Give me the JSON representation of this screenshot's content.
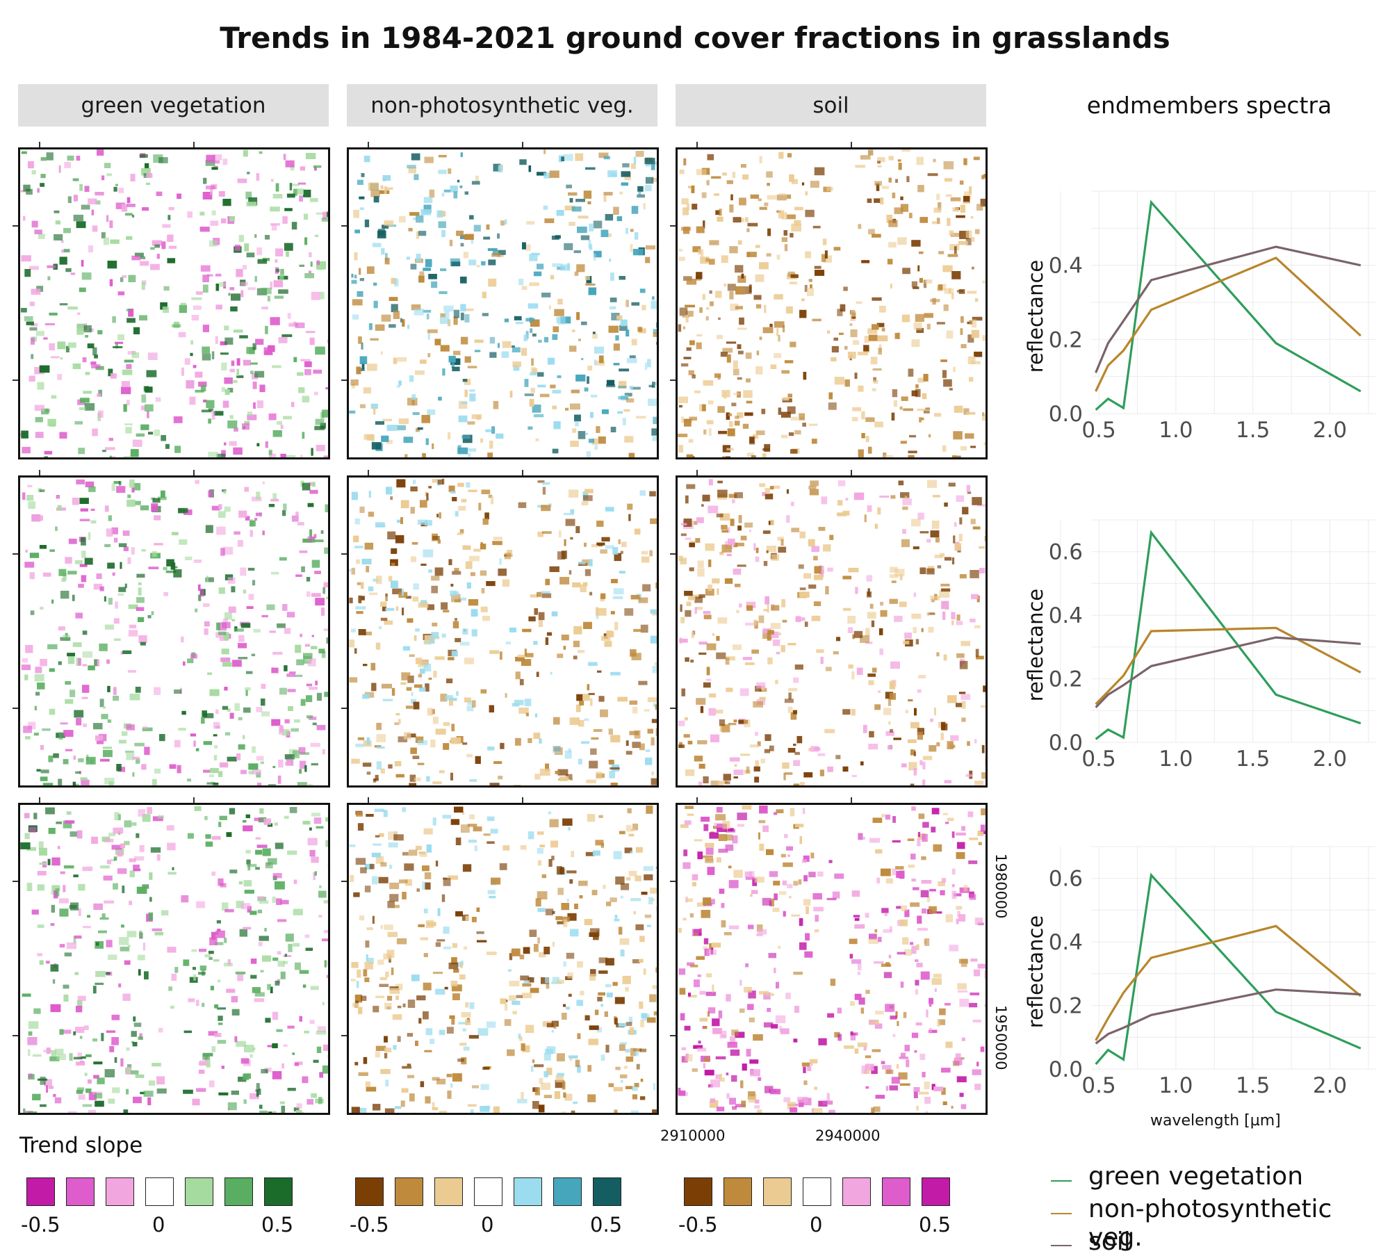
{
  "title": "Trends in 1984-2021 ground cover fractions in grasslands",
  "columns": [
    "green vegetation",
    "non-photosynthetic veg.",
    "soil"
  ],
  "spectra_header": "endmembers spectra",
  "map_axes": {
    "x_ticks": [
      "2910000",
      "2940000"
    ],
    "y_ticks": [
      "1980000",
      "1950000"
    ]
  },
  "legend": {
    "title": "Trend slope",
    "min_label": "-0.5",
    "mid_label": "0",
    "max_label": "0.5",
    "scales": [
      [
        "#c21ba8",
        "#de5ccc",
        "#f2a6e0",
        "#ffffff",
        "#a6dba0",
        "#5aae61",
        "#1b6b2b"
      ],
      [
        "#7b3f06",
        "#bf8a3c",
        "#eccb92",
        "#ffffff",
        "#9bdcef",
        "#46a6bc",
        "#145d61"
      ],
      [
        "#7b3f06",
        "#bf8a3c",
        "#eccb92",
        "#ffffff",
        "#f2a6e0",
        "#de5ccc",
        "#c21ba8"
      ]
    ]
  },
  "map_palettes": [
    [
      "#1b6b2b",
      "#5aae61",
      "#a6dba0",
      "#f2a6e0",
      "#de5ccc"
    ],
    [
      "#145d61",
      "#46a6bc",
      "#9bdcef",
      "#eccb92",
      "#bf8a3c"
    ],
    [
      "#7b3f06",
      "#bf8a3c",
      "#eccb92"
    ],
    [
      "#1b6b2b",
      "#5aae61",
      "#a6dba0",
      "#f2a6e0",
      "#de5ccc"
    ],
    [
      "#bf8a3c",
      "#eccb92",
      "#9bdcef",
      "#7b3f06"
    ],
    [
      "#7b3f06",
      "#bf8a3c",
      "#eccb92",
      "#f2a6e0"
    ],
    [
      "#1b6b2b",
      "#5aae61",
      "#a6dba0",
      "#f2a6e0",
      "#de5ccc"
    ],
    [
      "#7b3f06",
      "#bf8a3c",
      "#eccb92",
      "#9bdcef"
    ],
    [
      "#de5ccc",
      "#c21ba8",
      "#f2a6e0",
      "#eccb92",
      "#bf8a3c"
    ]
  ],
  "series_colors": {
    "green vegetation": "#2e9e5b",
    "non-photosynthetic veg.": "#b8862b",
    "soil": "#7a6468"
  },
  "chart_data": [
    {
      "type": "line",
      "xlabel": "wavelength [µm]",
      "ylabel": "reflectance",
      "xlim": [
        0.45,
        2.3
      ],
      "ylim": [
        0,
        0.6
      ],
      "x_ticks": [
        "0.5",
        "1.0",
        "1.5",
        "2.0"
      ],
      "y_ticks": [
        "0.0",
        "0.2",
        "0.4"
      ],
      "x": [
        0.48,
        0.56,
        0.66,
        0.84,
        1.65,
        2.2
      ],
      "series": [
        {
          "name": "green vegetation",
          "values": [
            0.01,
            0.04,
            0.015,
            0.57,
            0.19,
            0.06
          ]
        },
        {
          "name": "non-photosynthetic veg.",
          "values": [
            0.06,
            0.13,
            0.17,
            0.28,
            0.42,
            0.21
          ]
        },
        {
          "name": "soil",
          "values": [
            0.11,
            0.19,
            0.25,
            0.36,
            0.45,
            0.4
          ]
        }
      ]
    },
    {
      "type": "line",
      "xlabel": "wavelength [µm]",
      "ylabel": "reflectance",
      "xlim": [
        0.45,
        2.3
      ],
      "ylim": [
        0,
        0.7
      ],
      "x_ticks": [
        "0.5",
        "1.0",
        "1.5",
        "2.0"
      ],
      "y_ticks": [
        "0.0",
        "0.2",
        "0.4",
        "0.6"
      ],
      "x": [
        0.48,
        0.56,
        0.66,
        0.84,
        1.65,
        2.2
      ],
      "series": [
        {
          "name": "green vegetation",
          "values": [
            0.01,
            0.04,
            0.015,
            0.66,
            0.15,
            0.06
          ]
        },
        {
          "name": "non-photosynthetic veg.",
          "values": [
            0.12,
            0.16,
            0.21,
            0.35,
            0.36,
            0.22
          ]
        },
        {
          "name": "soil",
          "values": [
            0.11,
            0.15,
            0.18,
            0.24,
            0.33,
            0.31
          ]
        }
      ]
    },
    {
      "type": "line",
      "xlabel": "wavelength [µm]",
      "ylabel": "reflectance",
      "xlim": [
        0.45,
        2.3
      ],
      "ylim": [
        0,
        0.7
      ],
      "x_ticks": [
        "0.5",
        "1.0",
        "1.5",
        "2.0"
      ],
      "y_ticks": [
        "0.0",
        "0.2",
        "0.4",
        "0.6"
      ],
      "x": [
        0.48,
        0.56,
        0.66,
        0.84,
        1.65,
        2.2
      ],
      "series": [
        {
          "name": "green vegetation",
          "values": [
            0.015,
            0.06,
            0.03,
            0.61,
            0.18,
            0.065
          ]
        },
        {
          "name": "non-photosynthetic veg.",
          "values": [
            0.09,
            0.16,
            0.24,
            0.35,
            0.45,
            0.23
          ]
        },
        {
          "name": "soil",
          "values": [
            0.08,
            0.11,
            0.13,
            0.17,
            0.25,
            0.235
          ]
        }
      ]
    }
  ]
}
